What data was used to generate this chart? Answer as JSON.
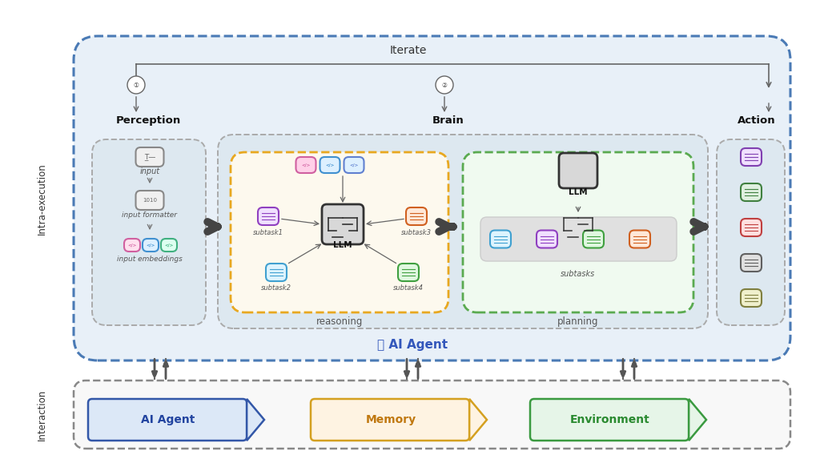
{
  "bg_color": "#ffffff",
  "outer_bg": "#e8f0f8",
  "intra_label": "Intra-execution",
  "interaction_label": "Interaction",
  "iterate_label": "Iterate",
  "perception_label": "Perception",
  "brain_label": "Brain",
  "action_label": "Action",
  "reasoning_label": "reasoning",
  "planning_label": "planning",
  "ai_agent_label": "AI Agent",
  "input_label": "input",
  "input_formatter_label": "input formatter",
  "input_embeddings_label": "input embeddings",
  "subtasks_label": "subtasks",
  "llm_label": "LLM",
  "bottom_labels": [
    "AI Agent",
    "Memory",
    "Environment"
  ],
  "bottom_colors_fill": [
    "#dce8f7",
    "#fef3e2",
    "#e6f5e8"
  ],
  "bottom_colors_border": [
    "#3357a8",
    "#d4a020",
    "#3a9a40"
  ],
  "bottom_text_colors": [
    "#2244a0",
    "#c07810",
    "#2a8a30"
  ]
}
